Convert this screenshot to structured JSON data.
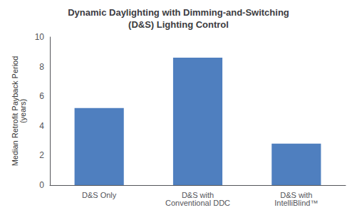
{
  "chart_data": {
    "type": "bar",
    "title": "Dynamic Daylighting with Dimming-and-Switching\n(D&S) Lighting Control",
    "categories": [
      "D&S Only",
      "D&S with\nConventional DDC",
      "D&S with\nIntelliBlind™"
    ],
    "values": [
      5.2,
      8.6,
      2.8
    ],
    "color": "#4f7fbf",
    "ylabel": "Median Retrofit Payback Period\n(years)",
    "ylim": [
      0,
      10
    ],
    "yticks": [
      0,
      2,
      4,
      6,
      8,
      10
    ],
    "grid": false
  }
}
